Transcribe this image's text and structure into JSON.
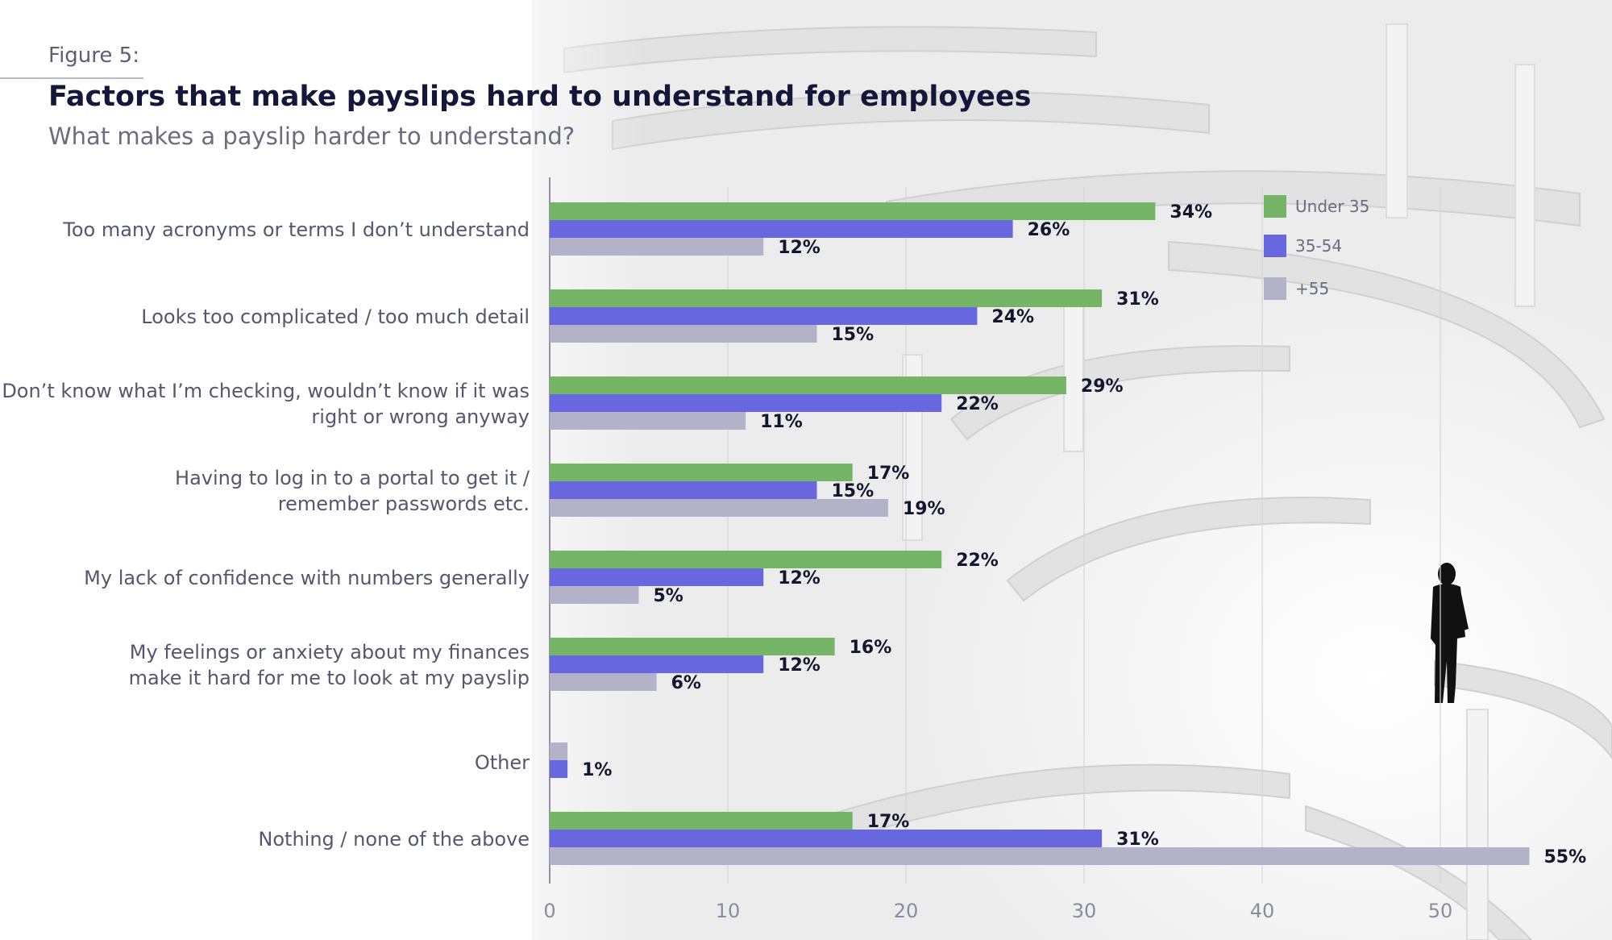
{
  "figure_label": "Figure 5:",
  "title": "Factors that make payslips hard to understand for employees",
  "subtitle": "What makes a payslip harder to understand?",
  "colors": {
    "under35": "#74b566",
    "age35_54": "#6767e0",
    "plus55": "#b4b2c8"
  },
  "chart_data": {
    "type": "bar",
    "orientation": "horizontal",
    "categories": [
      [
        "Too many acronyms or terms I don’t understand"
      ],
      [
        "Looks too complicated / too much detail"
      ],
      [
        "Don’t know what I’m checking, wouldn’t know if it was",
        "right or wrong anyway"
      ],
      [
        "Having to log in to a portal to get it /",
        "remember passwords etc."
      ],
      [
        "My lack of confidence with numbers generally"
      ],
      [
        "My feelings or anxiety about my finances",
        "make it hard for me to look at my payslip"
      ],
      [
        "Other"
      ],
      [
        "Nothing / none of the above"
      ]
    ],
    "series": [
      {
        "name": "Under 35",
        "color": "#74b566",
        "values": [
          34,
          31,
          29,
          17,
          22,
          16,
          null,
          17
        ],
        "labels": [
          "34%",
          "31%",
          "29%",
          "17%",
          "22%",
          "16%",
          null,
          "17%"
        ]
      },
      {
        "name": "35-54",
        "color": "#6767e0",
        "values": [
          26,
          24,
          22,
          15,
          12,
          12,
          1,
          31
        ],
        "labels": [
          "26%",
          "24%",
          "22%",
          "15%",
          "12%",
          "12%",
          "1%",
          "31%"
        ]
      },
      {
        "name": "+55",
        "color": "#b4b2c8",
        "values": [
          12,
          15,
          11,
          19,
          5,
          6,
          1,
          55
        ],
        "labels": [
          "12%",
          "15%",
          "11%",
          "19%",
          "5%",
          "6%",
          null,
          "55%"
        ]
      }
    ],
    "xlim": [
      0,
      55
    ],
    "xticks": [
      "0",
      "10",
      "20",
      "30",
      "40",
      "50"
    ],
    "grid": true,
    "legend_position": "top-right"
  }
}
